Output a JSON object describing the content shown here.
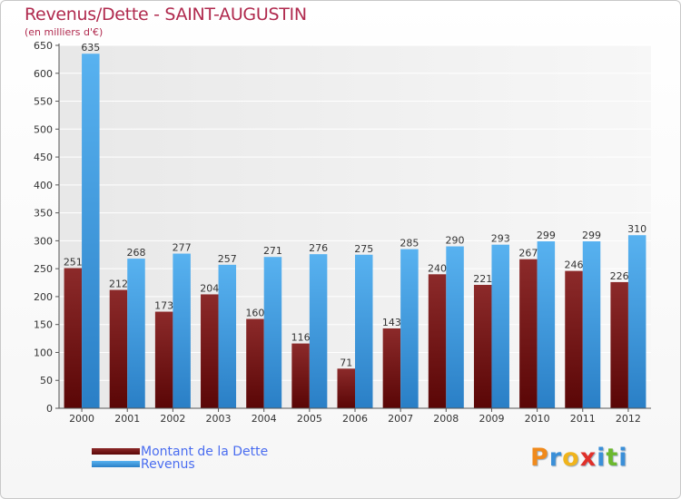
{
  "title": "Revenus/Dette - SAINT-AUGUSTIN",
  "subtitle": "(en milliers d'€)",
  "logo_text": "Proxiti",
  "colors": {
    "debt": "#7a1a1c",
    "revenue": "#4aa3e8",
    "title": "#b02a4e",
    "legend_text": "#4a6df0"
  },
  "chart_data": {
    "type": "bar",
    "categories": [
      "2000",
      "2001",
      "2002",
      "2003",
      "2004",
      "2005",
      "2006",
      "2007",
      "2008",
      "2009",
      "2010",
      "2011",
      "2012"
    ],
    "series": [
      {
        "name": "Montant de la Dette",
        "values": [
          251,
          212,
          173,
          204,
          160,
          116,
          71,
          143,
          240,
          221,
          267,
          246,
          226
        ]
      },
      {
        "name": "Revenus",
        "values": [
          635,
          268,
          277,
          257,
          271,
          276,
          275,
          285,
          290,
          293,
          299,
          299,
          310
        ]
      }
    ],
    "yticks": [
      0,
      50,
      100,
      150,
      200,
      250,
      300,
      350,
      400,
      450,
      500,
      550,
      600,
      650
    ],
    "ylim": [
      0,
      650
    ],
    "grid": true,
    "legend_position": "bottom-left"
  }
}
